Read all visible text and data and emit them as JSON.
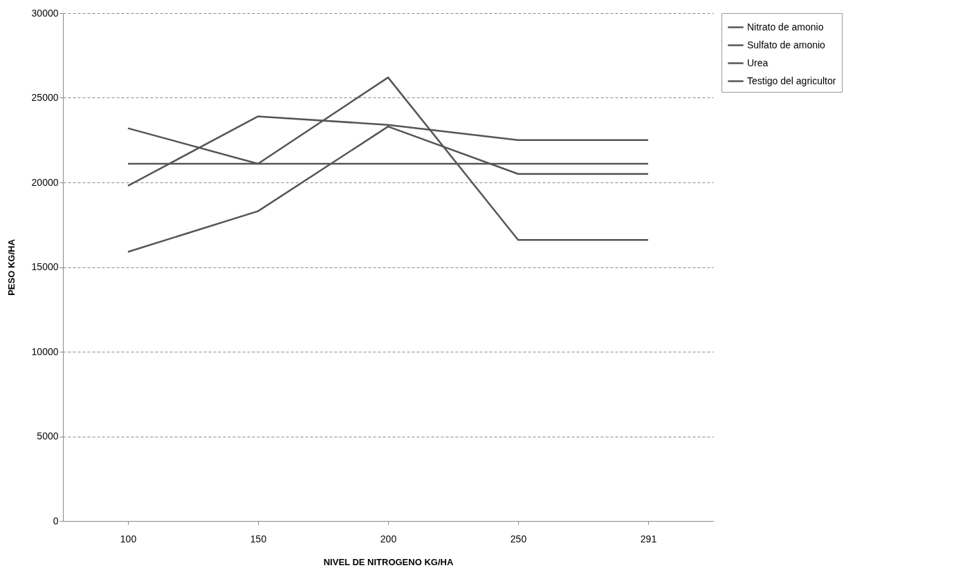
{
  "chart_data": {
    "type": "line",
    "xlabel": "NIVEL DE NITROGENO KG/HA",
    "ylabel": "PESO KG/HA",
    "categories": [
      "100",
      "150",
      "200",
      "250",
      "291"
    ],
    "series": [
      {
        "name": "Nitrato de amonio",
        "color": "#555555",
        "values": [
          23200,
          21100,
          26200,
          16600,
          16600
        ]
      },
      {
        "name": "Sulfato de amonio",
        "color": "#555555",
        "values": [
          19800,
          23900,
          23400,
          22500,
          22500
        ]
      },
      {
        "name": "Urea",
        "color": "#555555",
        "values": [
          15900,
          18300,
          23300,
          20500,
          20500
        ]
      },
      {
        "name": "Testigo del agricultor",
        "color": "#555555",
        "values": [
          21100,
          21100,
          21100,
          21100,
          21100
        ]
      }
    ],
    "ylim": [
      0,
      30000
    ],
    "yticks": [
      0,
      5000,
      10000,
      15000,
      20000,
      25000,
      30000
    ],
    "grid": "y",
    "legend": "right",
    "marker": "none",
    "line_style": "solid"
  }
}
